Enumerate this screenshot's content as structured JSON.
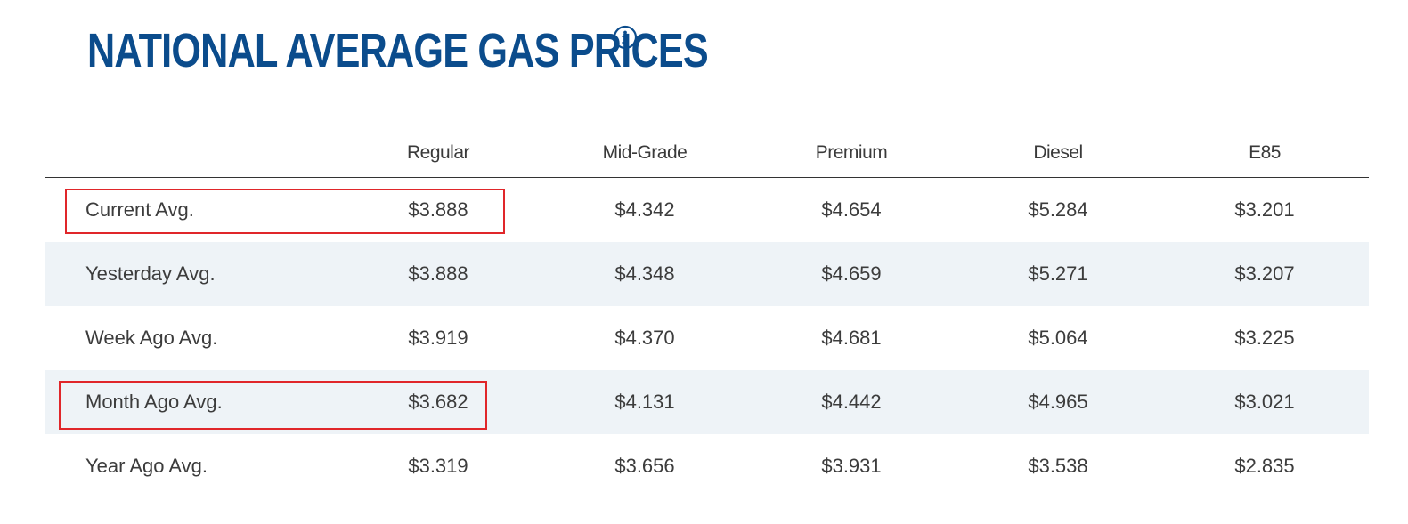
{
  "page": {
    "title": "NATIONAL AVERAGE GAS PRICES",
    "info_icon": "info-circle-icon"
  },
  "table": {
    "columns": [
      "",
      "Regular",
      "Mid-Grade",
      "Premium",
      "Diesel",
      "E85"
    ],
    "rows": [
      {
        "label": "Current Avg.",
        "values": [
          "$3.888",
          "$4.342",
          "$4.654",
          "$5.284",
          "$3.201"
        ]
      },
      {
        "label": "Yesterday Avg.",
        "values": [
          "$3.888",
          "$4.348",
          "$4.659",
          "$5.271",
          "$3.207"
        ]
      },
      {
        "label": "Week Ago Avg.",
        "values": [
          "$3.919",
          "$4.370",
          "$4.681",
          "$5.064",
          "$3.225"
        ]
      },
      {
        "label": "Month Ago Avg.",
        "values": [
          "$3.682",
          "$4.131",
          "$4.442",
          "$4.965",
          "$3.021"
        ]
      },
      {
        "label": "Year Ago Avg.",
        "values": [
          "$3.319",
          "$3.656",
          "$3.931",
          "$3.538",
          "$2.835"
        ]
      }
    ]
  },
  "colors": {
    "title": "#0b4c8c",
    "alt_row": "#eef3f7",
    "highlight": "#e0262a"
  },
  "highlights": [
    "Current Avg.",
    "Month Ago Avg."
  ]
}
